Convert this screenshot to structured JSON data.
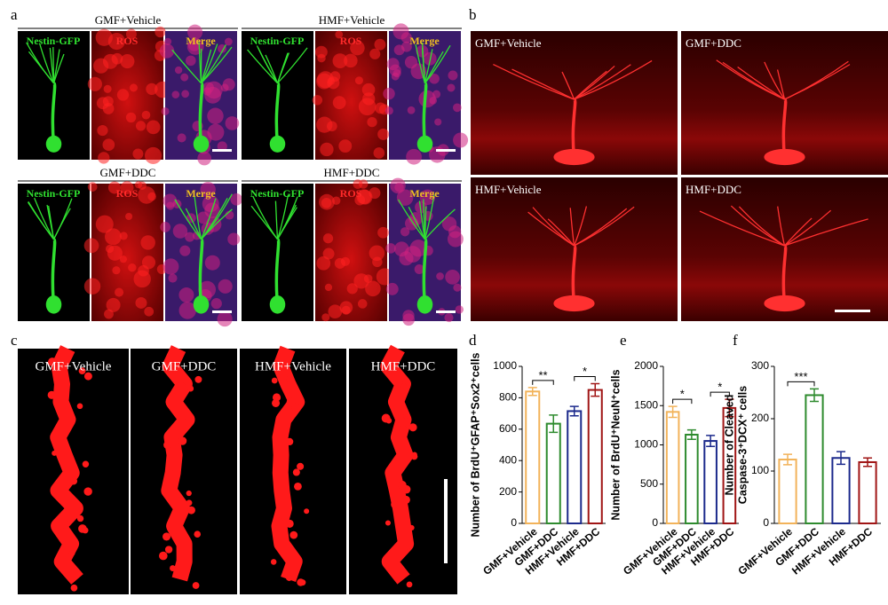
{
  "panel_labels": [
    "a",
    "b",
    "c",
    "d",
    "e",
    "f"
  ],
  "panel_a": {
    "groups": [
      {
        "title": "GMF+Vehicle",
        "channels": [
          "Nestin-GFP",
          "ROS",
          "Merge"
        ]
      },
      {
        "title": "HMF+Vehicle",
        "channels": [
          "Nestin-GFP",
          "ROS",
          "Merge"
        ]
      },
      {
        "title": "GMF+DDC",
        "channels": [
          "Nestin-GFP",
          "ROS",
          "Merge"
        ]
      },
      {
        "title": "HMF+DDC",
        "channels": [
          "Nestin-GFP",
          "ROS",
          "Merge"
        ]
      }
    ]
  },
  "panel_b": {
    "labels": [
      "GMF+Vehicle",
      "GMF+DDC",
      "HMF+Vehicle",
      "HMF+DDC"
    ]
  },
  "panel_c": {
    "labels": [
      "GMF+Vehicle",
      "GMF+DDC",
      "HMF+Vehicle",
      "HMF+DDC"
    ]
  },
  "chart_data": [
    {
      "type": "bar",
      "y_label": [
        "Number of BrdU⁺GFAP⁺Sox2⁺cells"
      ],
      "categories": [
        "GMF+Vehicle",
        "GMF+DDC",
        "HMF+Vehicle",
        "HMF+DDC"
      ],
      "values": [
        840,
        635,
        715,
        850
      ],
      "errors": [
        25,
        55,
        30,
        40
      ],
      "colors": [
        "#f2b35a",
        "#2e8b2e",
        "#1c2a8c",
        "#a01515"
      ],
      "ylim": [
        0,
        1000
      ],
      "yticks": [
        0,
        200,
        400,
        600,
        800,
        1000
      ],
      "significance": [
        {
          "label": "**",
          "groups": [
            0,
            1
          ]
        },
        {
          "label": "*",
          "groups": [
            2,
            3
          ]
        }
      ]
    },
    {
      "type": "bar",
      "y_label": [
        "Number of BrdU⁺NeuN⁺cells"
      ],
      "categories": [
        "GMF+Vehicle",
        "GMF+DDC",
        "HMF+Vehicle",
        "HMF+DDC"
      ],
      "values": [
        1420,
        1130,
        1050,
        1470
      ],
      "errors": [
        70,
        60,
        70,
        110
      ],
      "colors": [
        "#f2b35a",
        "#2e8b2e",
        "#1c2a8c",
        "#a01515"
      ],
      "ylim": [
        0,
        2000
      ],
      "yticks": [
        0,
        500,
        1000,
        1500,
        2000
      ],
      "significance": [
        {
          "label": "*",
          "groups": [
            0,
            1
          ]
        },
        {
          "label": "*",
          "groups": [
            2,
            3
          ]
        }
      ]
    },
    {
      "type": "bar",
      "y_label": [
        "Number of Cleaved",
        "Caspase-3⁺DCX⁺ cells"
      ],
      "categories": [
        "GMF+Vehicle",
        "GMF+DDC",
        "HMF+Vehicle",
        "HMF+DDC"
      ],
      "values": [
        122,
        245,
        125,
        117
      ],
      "errors": [
        10,
        12,
        12,
        8
      ],
      "colors": [
        "#f2b35a",
        "#2e8b2e",
        "#1c2a8c",
        "#a01515"
      ],
      "ylim": [
        0,
        300
      ],
      "yticks": [
        0,
        100,
        200,
        300
      ],
      "significance": [
        {
          "label": "***",
          "groups": [
            0,
            1
          ]
        }
      ]
    }
  ]
}
